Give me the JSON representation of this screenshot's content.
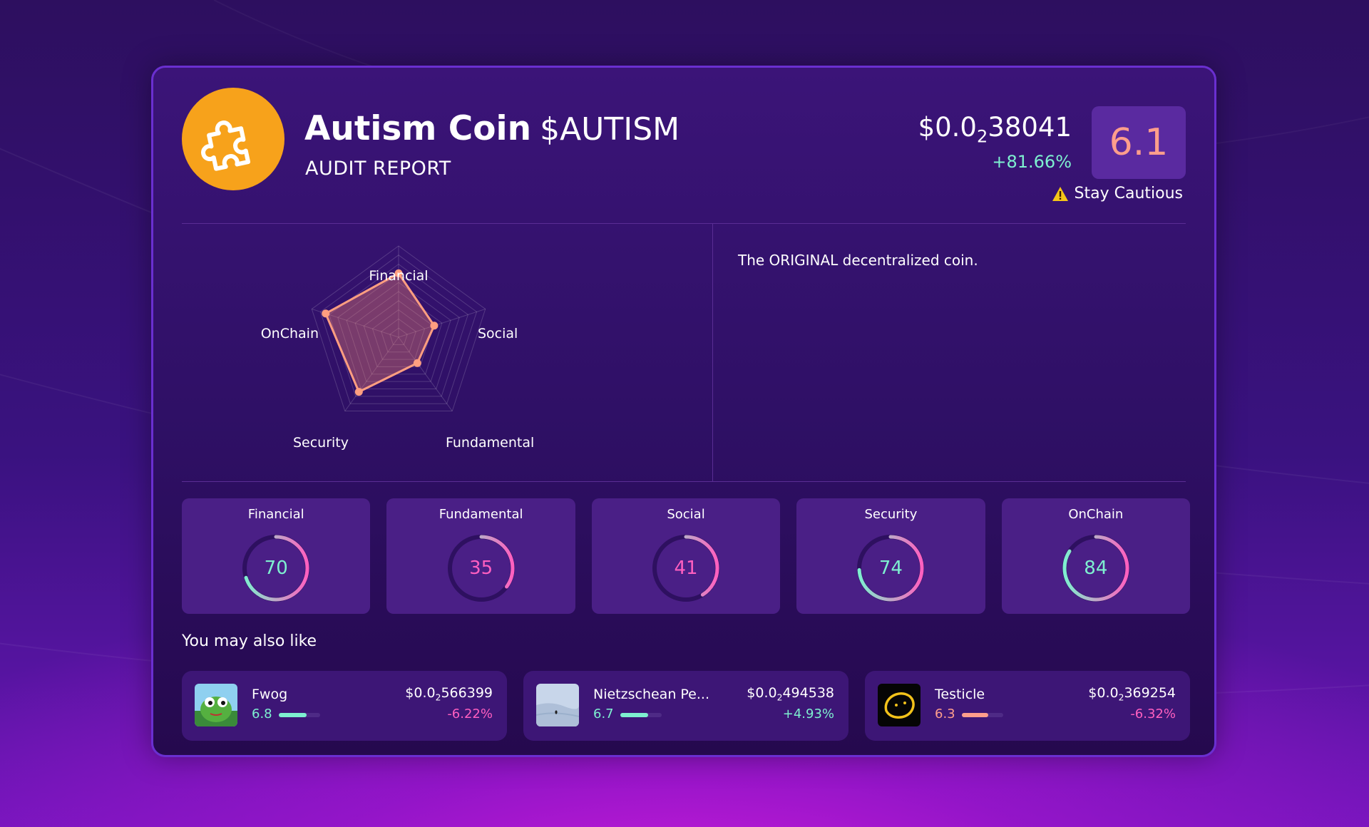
{
  "token": {
    "name": "Autism Coin",
    "ticker": "$AUTISM",
    "subtitle": "AUDIT REPORT",
    "logo_icon": "puzzle-piece-icon",
    "price_prefix": "$0.0",
    "price_zeros": "2",
    "price_digits": "38041",
    "change": "+81.66%",
    "score": "6.1",
    "status": "Stay Cautious",
    "status_icon": "warning-icon"
  },
  "description": "The ORIGINAL decentralized coin.",
  "radar": {
    "axes": [
      "Financial",
      "Social",
      "Fundamental",
      "Security",
      "OnChain"
    ],
    "values": [
      70,
      41,
      35,
      74,
      84
    ],
    "max": 100,
    "rings": 10,
    "line_color": "#ff9e80",
    "fill_color": "#ff8a70"
  },
  "metrics": [
    {
      "label": "Financial",
      "value": 70,
      "color": "#7ef0d0"
    },
    {
      "label": "Fundamental",
      "value": 35,
      "color": "#ff5fc0"
    },
    {
      "label": "Social",
      "value": 41,
      "color": "#ff5fc0"
    },
    {
      "label": "Security",
      "value": 74,
      "color": "#7ef0d0"
    },
    {
      "label": "OnChain",
      "value": 84,
      "color": "#7ef0d0"
    }
  ],
  "also_like": {
    "title": "You may also like",
    "items": [
      {
        "name": "Fwog",
        "score": "6.8",
        "score_fraction": 0.68,
        "bar_color": "#7ef0d0",
        "price_prefix": "$0.0",
        "price_zeros": "2",
        "price_digits": "566399",
        "change": "-6.22%",
        "change_color": "#ff5fc0",
        "icon": "frog-icon"
      },
      {
        "name": "Nietzschean Pe...",
        "score": "6.7",
        "score_fraction": 0.67,
        "bar_color": "#7ef0d0",
        "price_prefix": "$0.0",
        "price_zeros": "2",
        "price_digits": "494538",
        "change": "+4.93%",
        "change_color": "#7ef0d0",
        "icon": "penguin-snow-icon"
      },
      {
        "name": "Testicle",
        "score": "6.3",
        "score_fraction": 0.63,
        "bar_color": "#ff9e8c",
        "price_prefix": "$0.0",
        "price_zeros": "2",
        "price_digits": "369254",
        "change": "-6.32%",
        "change_color": "#ff5fc0",
        "icon": "yellow-blob-icon"
      }
    ]
  },
  "colors": {
    "accent_green": "#7ef0d0",
    "accent_pink": "#ff5fc0",
    "score_salmon": "#ff9e8c",
    "logo_orange": "#f7a21b"
  }
}
